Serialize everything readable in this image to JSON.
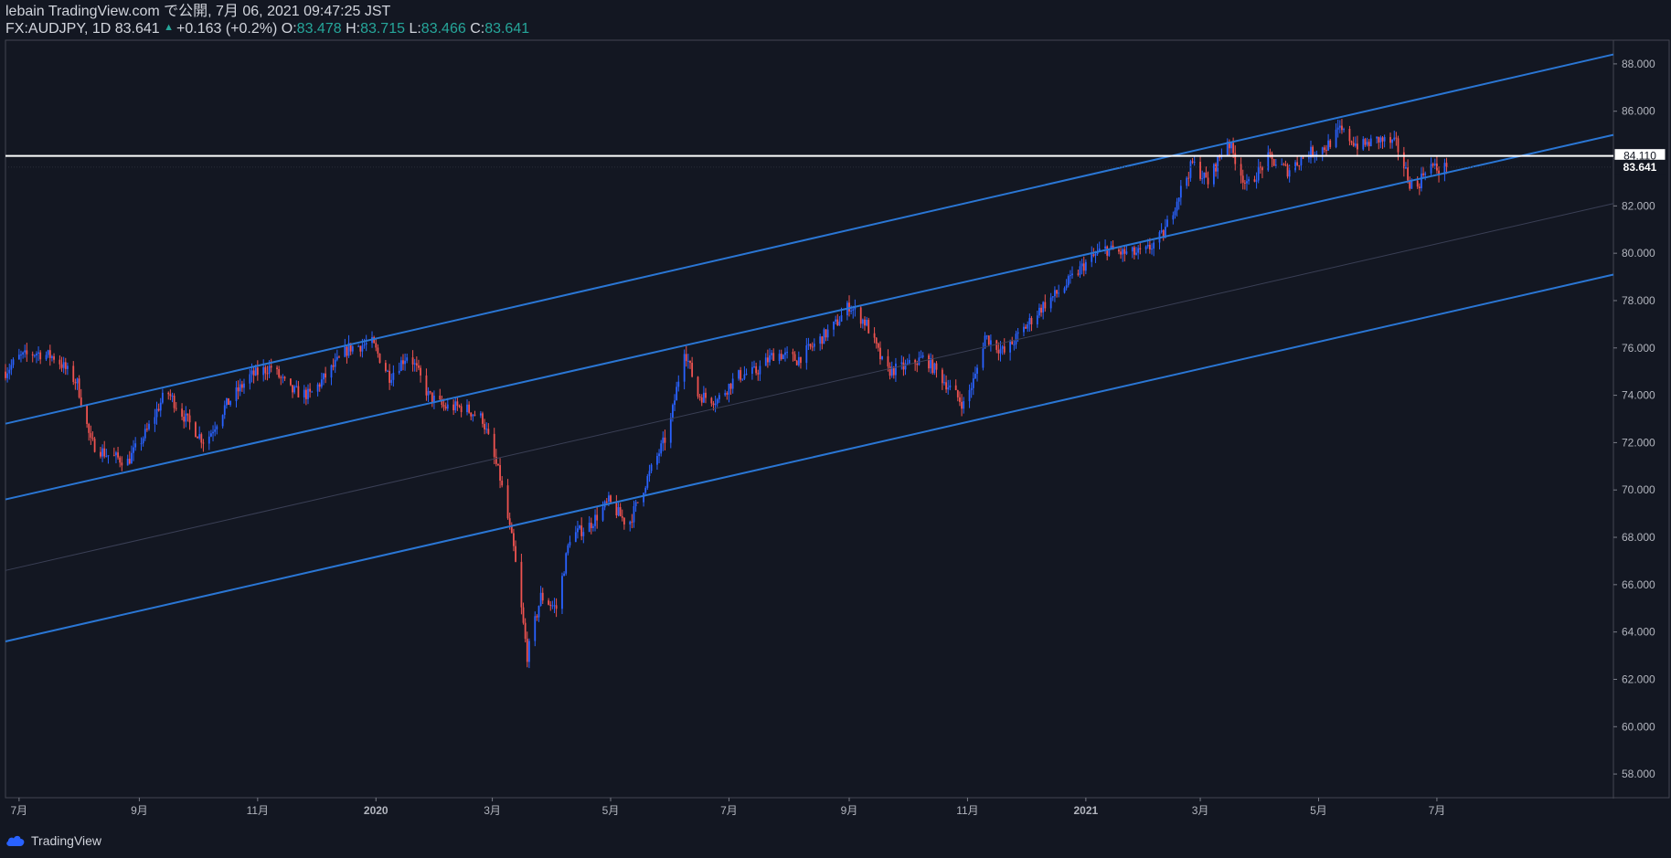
{
  "header": {
    "line1": "lebain TradingView.com で公開, 7月 06, 2021 09:47:25 JST",
    "symbol": "FX:AUDJPY, 1D 83.641",
    "change": "+0.163 (+0.2%)",
    "o_label": "O:",
    "o_value": "83.478",
    "h_label": "H:",
    "h_value": "83.715",
    "l_label": "L:",
    "l_value": "83.466",
    "c_label": "C:",
    "c_value": "83.641"
  },
  "footer": {
    "brand": "TradingView"
  },
  "colors": {
    "bg": "#131722",
    "up": "#2962ff",
    "down": "#ef5350",
    "channel": "#2a76d4",
    "grid": "#2a2e39",
    "text": "#d1d4dc",
    "change": "#26a69a"
  },
  "chart_data": {
    "type": "candlestick",
    "symbol": "FX:AUDJPY",
    "interval": "1D",
    "ylim": [
      57,
      89
    ],
    "y_ticks": [
      "88.000",
      "86.000",
      "84.000",
      "82.000",
      "80.000",
      "78.000",
      "76.000",
      "74.000",
      "72.000",
      "70.000",
      "68.000",
      "66.000",
      "64.000",
      "62.000",
      "60.000",
      "58.000"
    ],
    "x_ticks": [
      "7月",
      "9月",
      "11月",
      "2020",
      "3月",
      "5月",
      "7月",
      "9月",
      "11月",
      "2021",
      "3月",
      "5月",
      "7月"
    ],
    "x_tick_dates": [
      "2019-07-01",
      "2019-09-01",
      "2019-11-01",
      "2020-01-01",
      "2020-03-01",
      "2020-05-01",
      "2020-07-01",
      "2020-09-01",
      "2020-11-01",
      "2021-01-01",
      "2021-03-01",
      "2021-05-01",
      "2021-07-01"
    ],
    "date_range": [
      "2019-06-24",
      "2021-09-30"
    ],
    "price_labels": [
      {
        "text": "84.110",
        "value": 84.11,
        "style": "horizontal-line"
      },
      {
        "text": "83.641",
        "value": 83.641,
        "style": "last-price"
      }
    ],
    "horizontal_line": 84.11,
    "channel_lines": [
      {
        "start": [
          "2019-06-24",
          72.8
        ],
        "end": [
          "2021-09-30",
          88.4
        ],
        "style": "solid"
      },
      {
        "start": [
          "2019-06-24",
          69.6
        ],
        "end": [
          "2021-09-30",
          85.0
        ],
        "style": "solid"
      },
      {
        "start": [
          "2019-06-24",
          66.6
        ],
        "end": [
          "2021-09-30",
          82.1
        ],
        "style": "faint"
      },
      {
        "start": [
          "2019-06-24",
          63.6
        ],
        "end": [
          "2021-09-30",
          79.1
        ],
        "style": "solid"
      }
    ],
    "closes": [
      [
        "2019-06-24",
        75.0
      ],
      [
        "2019-07-01",
        75.6
      ],
      [
        "2019-07-10",
        75.8
      ],
      [
        "2019-07-20",
        75.6
      ],
      [
        "2019-07-31",
        74.5
      ],
      [
        "2019-08-07",
        72.0
      ],
      [
        "2019-08-15",
        71.5
      ],
      [
        "2019-08-26",
        71.2
      ],
      [
        "2019-09-05",
        72.5
      ],
      [
        "2019-09-15",
        74.2
      ],
      [
        "2019-09-25",
        73.0
      ],
      [
        "2019-10-05",
        72.0
      ],
      [
        "2019-10-15",
        73.5
      ],
      [
        "2019-10-28",
        74.8
      ],
      [
        "2019-11-08",
        75.2
      ],
      [
        "2019-11-18",
        74.2
      ],
      [
        "2019-11-28",
        74.0
      ],
      [
        "2019-12-08",
        75.0
      ],
      [
        "2019-12-18",
        76.0
      ],
      [
        "2019-12-30",
        76.2
      ],
      [
        "2020-01-08",
        74.8
      ],
      [
        "2020-01-18",
        75.8
      ],
      [
        "2020-01-28",
        74.0
      ],
      [
        "2020-02-05",
        73.5
      ],
      [
        "2020-02-15",
        73.5
      ],
      [
        "2020-02-25",
        73.0
      ],
      [
        "2020-03-05",
        70.5
      ],
      [
        "2020-03-12",
        67.5
      ],
      [
        "2020-03-19",
        63.0
      ],
      [
        "2020-03-26",
        65.5
      ],
      [
        "2020-04-03",
        65.0
      ],
      [
        "2020-04-10",
        68.0
      ],
      [
        "2020-04-20",
        68.5
      ],
      [
        "2020-04-30",
        69.5
      ],
      [
        "2020-05-10",
        68.5
      ],
      [
        "2020-05-20",
        70.5
      ],
      [
        "2020-05-31",
        72.5
      ],
      [
        "2020-06-08",
        76.0
      ],
      [
        "2020-06-15",
        74.0
      ],
      [
        "2020-06-25",
        73.8
      ],
      [
        "2020-07-05",
        74.8
      ],
      [
        "2020-07-15",
        75.0
      ],
      [
        "2020-07-25",
        75.8
      ],
      [
        "2020-08-05",
        75.5
      ],
      [
        "2020-08-15",
        76.2
      ],
      [
        "2020-08-25",
        77.0
      ],
      [
        "2020-09-01",
        77.8
      ],
      [
        "2020-09-10",
        77.0
      ],
      [
        "2020-09-20",
        75.0
      ],
      [
        "2020-09-30",
        75.2
      ],
      [
        "2020-10-10",
        75.6
      ],
      [
        "2020-10-20",
        74.6
      ],
      [
        "2020-10-30",
        73.6
      ],
      [
        "2020-11-05",
        74.8
      ],
      [
        "2020-11-10",
        76.5
      ],
      [
        "2020-11-20",
        75.8
      ],
      [
        "2020-11-30",
        76.8
      ],
      [
        "2020-12-10",
        77.8
      ],
      [
        "2020-12-20",
        78.5
      ],
      [
        "2020-12-31",
        79.5
      ],
      [
        "2021-01-10",
        80.2
      ],
      [
        "2021-01-20",
        80.0
      ],
      [
        "2021-01-31",
        80.0
      ],
      [
        "2021-02-10",
        80.8
      ],
      [
        "2021-02-18",
        82.5
      ],
      [
        "2021-02-25",
        83.8
      ],
      [
        "2021-03-05",
        83.0
      ],
      [
        "2021-03-15",
        84.8
      ],
      [
        "2021-03-25",
        82.8
      ],
      [
        "2021-04-05",
        84.0
      ],
      [
        "2021-04-15",
        83.5
      ],
      [
        "2021-04-25",
        84.2
      ],
      [
        "2021-05-05",
        84.5
      ],
      [
        "2021-05-12",
        85.2
      ],
      [
        "2021-05-22",
        84.5
      ],
      [
        "2021-06-01",
        84.8
      ],
      [
        "2021-06-10",
        84.6
      ],
      [
        "2021-06-17",
        83.0
      ],
      [
        "2021-06-21",
        82.8
      ],
      [
        "2021-06-26",
        83.8
      ],
      [
        "2021-07-02",
        83.5
      ],
      [
        "2021-07-06",
        83.641
      ]
    ]
  }
}
